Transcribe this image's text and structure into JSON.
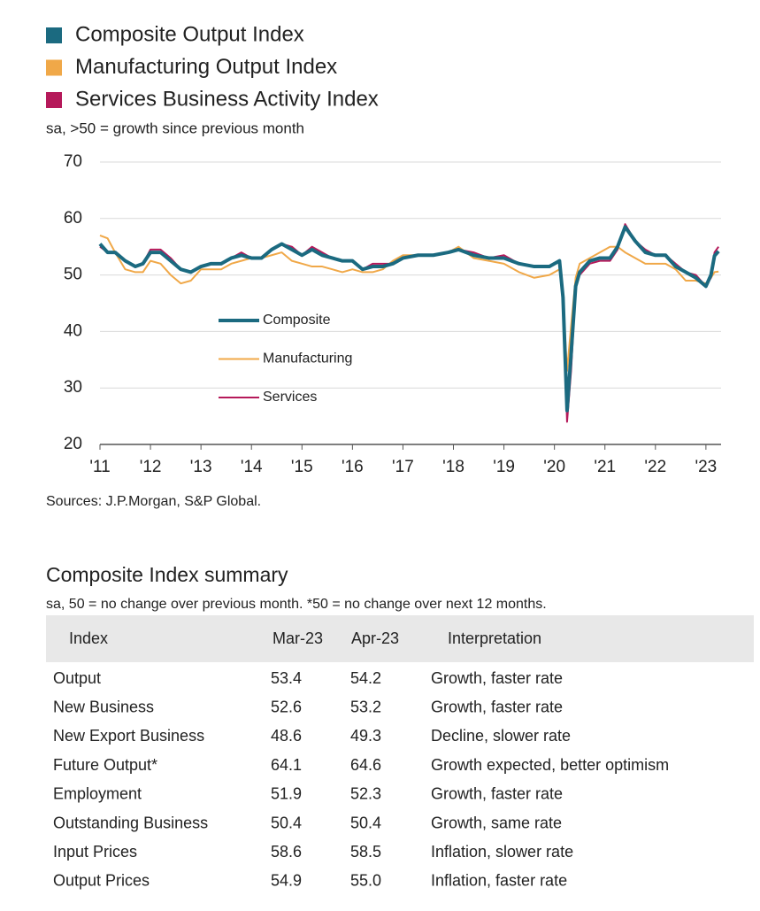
{
  "chart_data": {
    "type": "line",
    "subtitle": "sa, >50 = growth since previous month",
    "legend_labels": [
      "Composite",
      "Manufacturing",
      "Services"
    ],
    "x": [
      2011.0,
      2011.15,
      2011.3,
      2011.5,
      2011.7,
      2011.85,
      2012.0,
      2012.2,
      2012.4,
      2012.6,
      2012.8,
      2013.0,
      2013.2,
      2013.4,
      2013.6,
      2013.8,
      2014.0,
      2014.2,
      2014.4,
      2014.6,
      2014.8,
      2015.0,
      2015.2,
      2015.4,
      2015.6,
      2015.8,
      2016.0,
      2016.2,
      2016.4,
      2016.6,
      2016.8,
      2017.0,
      2017.3,
      2017.6,
      2017.9,
      2018.1,
      2018.4,
      2018.7,
      2019.0,
      2019.3,
      2019.6,
      2019.9,
      2020.1,
      2020.17,
      2020.25,
      2020.33,
      2020.42,
      2020.5,
      2020.7,
      2020.9,
      2021.1,
      2021.25,
      2021.4,
      2021.6,
      2021.8,
      2022.0,
      2022.2,
      2022.4,
      2022.6,
      2022.8,
      2023.0,
      2023.1,
      2023.17,
      2023.25
    ],
    "series": [
      {
        "name": "Composite Output Index",
        "color": "#1b6a80",
        "width": 4,
        "values": [
          55.5,
          54,
          54,
          52.5,
          51.5,
          52,
          54,
          54,
          52.5,
          51,
          50.5,
          51.5,
          52,
          52,
          53,
          53.5,
          53,
          53,
          54.5,
          55.5,
          54.5,
          53.5,
          54.5,
          53.5,
          53,
          52.5,
          52.5,
          51,
          51.5,
          51.5,
          52,
          53,
          53.5,
          53.5,
          54,
          54.5,
          53.5,
          53,
          53,
          52,
          51.5,
          51.5,
          52.5,
          46,
          26,
          36,
          48,
          50.5,
          52.5,
          53,
          53,
          55,
          58.5,
          56,
          54,
          53.5,
          53.5,
          51.5,
          50.5,
          49.5,
          48,
          50,
          53.4,
          54.2
        ]
      },
      {
        "name": "Manufacturing Output Index",
        "color": "#f0a848",
        "width": 2,
        "values": [
          57,
          56.5,
          54,
          51,
          50.5,
          50.5,
          52.5,
          52,
          50,
          48.5,
          49,
          51,
          51,
          51,
          52,
          52.5,
          53,
          53,
          53.5,
          54,
          52.5,
          52,
          51.5,
          51.5,
          51,
          50.5,
          51,
          50.5,
          50.5,
          51,
          52.5,
          53.5,
          53.5,
          53.5,
          54,
          55,
          53,
          52.5,
          52,
          50.5,
          49.5,
          50,
          51,
          46,
          33,
          41,
          49.5,
          52,
          53,
          54,
          55,
          55,
          54,
          53,
          52,
          52,
          52,
          51,
          49,
          49,
          48.5,
          49.5,
          50.5,
          50.6
        ]
      },
      {
        "name": "Services Business Activity Index",
        "color": "#b5195a",
        "width": 2,
        "values": [
          55,
          54,
          54,
          52.5,
          51.5,
          52,
          54.5,
          54.5,
          53,
          51,
          50.5,
          51.5,
          52,
          52,
          53,
          54,
          53,
          53,
          54.5,
          55.5,
          55,
          53.5,
          55,
          54,
          53,
          52.5,
          52.5,
          51,
          52,
          52,
          52,
          53,
          53.5,
          53.5,
          54,
          54.5,
          54,
          53,
          53.5,
          52,
          51.5,
          51.5,
          52.5,
          46,
          24,
          33,
          48,
          50,
          52,
          52.5,
          52.5,
          54.5,
          59,
          56,
          54.5,
          53.5,
          53.5,
          52,
          50.5,
          50,
          48,
          49.5,
          54,
          55
        ]
      }
    ],
    "xlim": [
      2011,
      2023.3
    ],
    "xticks": [
      {
        "value": 2011,
        "label": "'11"
      },
      {
        "value": 2012,
        "label": "'12"
      },
      {
        "value": 2013,
        "label": "'13"
      },
      {
        "value": 2014,
        "label": "'14"
      },
      {
        "value": 2015,
        "label": "'15"
      },
      {
        "value": 2016,
        "label": "'16"
      },
      {
        "value": 2017,
        "label": "'17"
      },
      {
        "value": 2018,
        "label": "'18"
      },
      {
        "value": 2019,
        "label": "'19"
      },
      {
        "value": 2020,
        "label": "'20"
      },
      {
        "value": 2021,
        "label": "'21"
      },
      {
        "value": 2022,
        "label": "'22"
      },
      {
        "value": 2023,
        "label": "'23"
      }
    ],
    "ylim": [
      20,
      70
    ],
    "yticks": [
      20,
      30,
      40,
      50,
      60,
      70
    ],
    "grid": true
  },
  "source": "Sources: J.P.Morgan, S&P Global.",
  "table": {
    "title": "Composite Index summary",
    "subtitle": "sa, 50 = no change over previous month. *50 = no change over next 12 months.",
    "header": [
      "Index",
      "Mar-23",
      "Apr-23",
      "Interpretation"
    ],
    "rows": [
      [
        "Output",
        "53.4",
        "54.2",
        "Growth, faster rate"
      ],
      [
        "New Business",
        "52.6",
        "53.2",
        "Growth, faster rate"
      ],
      [
        "New Export Business",
        "48.6",
        "49.3",
        "Decline, slower rate"
      ],
      [
        "Future Output*",
        "64.1",
        "64.6",
        "Growth expected, better optimism"
      ],
      [
        "Employment",
        "51.9",
        "52.3",
        "Growth, faster rate"
      ],
      [
        "Outstanding Business",
        "50.4",
        "50.4",
        "Growth, same rate"
      ],
      [
        "Input Prices",
        "58.6",
        "58.5",
        "Inflation, slower rate"
      ],
      [
        "Output Prices",
        "54.9",
        "55.0",
        "Inflation, faster rate"
      ]
    ]
  }
}
